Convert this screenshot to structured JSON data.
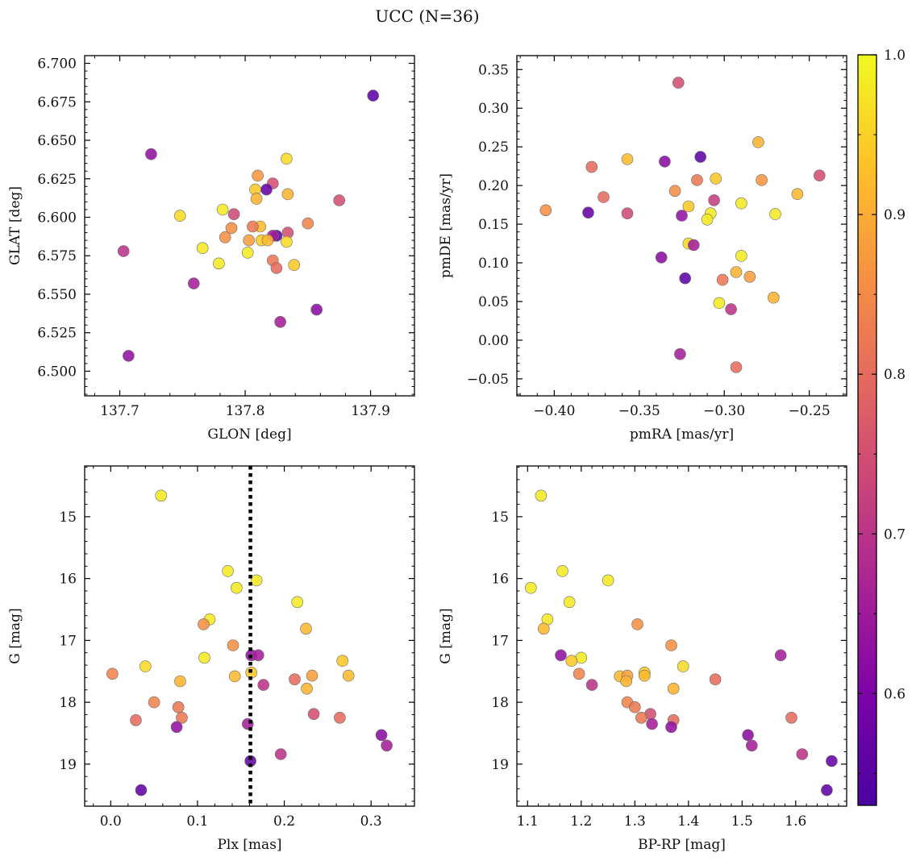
{
  "figure": {
    "title": "UCC (N=36)"
  },
  "colorbar": {
    "min": 0.53,
    "max": 1.0,
    "ticks": [
      0.6,
      0.7,
      0.8,
      0.9,
      1.0
    ],
    "tick_labels": [
      "0.6",
      "0.7",
      "0.8",
      "0.9",
      "1.0"
    ],
    "colormap": "plasma"
  },
  "chart_data": [
    {
      "type": "scatter",
      "xlabel": "GLON [deg]",
      "ylabel": "GLAT [deg]",
      "xlim": [
        137.672,
        137.935
      ],
      "ylim": [
        6.484,
        6.705
      ],
      "xticks": [
        137.7,
        137.8,
        137.9
      ],
      "xtick_labels": [
        "137.7",
        "137.8",
        "137.9"
      ],
      "yticks": [
        6.5,
        6.525,
        6.55,
        6.575,
        6.6,
        6.625,
        6.65,
        6.675,
        6.7
      ],
      "ytick_labels": [
        "6.500",
        "6.525",
        "6.550",
        "6.575",
        "6.600",
        "6.625",
        "6.650",
        "6.675",
        "6.700"
      ],
      "points": [
        {
          "x": 137.902,
          "y": 6.679,
          "c": 0.56
        },
        {
          "x": 137.725,
          "y": 6.641,
          "c": 0.63
        },
        {
          "x": 137.833,
          "y": 6.638,
          "c": 0.96
        },
        {
          "x": 137.81,
          "y": 6.627,
          "c": 0.87
        },
        {
          "x": 137.822,
          "y": 6.622,
          "c": 0.75
        },
        {
          "x": 137.817,
          "y": 6.618,
          "c": 0.57
        },
        {
          "x": 137.808,
          "y": 6.618,
          "c": 0.94
        },
        {
          "x": 137.834,
          "y": 6.615,
          "c": 0.91
        },
        {
          "x": 137.809,
          "y": 6.612,
          "c": 0.91
        },
        {
          "x": 137.875,
          "y": 6.611,
          "c": 0.75
        },
        {
          "x": 137.782,
          "y": 6.605,
          "c": 0.98
        },
        {
          "x": 137.791,
          "y": 6.602,
          "c": 0.74
        },
        {
          "x": 137.748,
          "y": 6.601,
          "c": 0.96
        },
        {
          "x": 137.85,
          "y": 6.596,
          "c": 0.84
        },
        {
          "x": 137.812,
          "y": 6.594,
          "c": 0.92
        },
        {
          "x": 137.806,
          "y": 6.594,
          "c": 0.82
        },
        {
          "x": 137.789,
          "y": 6.593,
          "c": 0.86
        },
        {
          "x": 137.834,
          "y": 6.59,
          "c": 0.75
        },
        {
          "x": 137.825,
          "y": 6.588,
          "c": 0.55
        },
        {
          "x": 137.822,
          "y": 6.588,
          "c": 0.66
        },
        {
          "x": 137.784,
          "y": 6.587,
          "c": 0.86
        },
        {
          "x": 137.813,
          "y": 6.585,
          "c": 0.94
        },
        {
          "x": 137.803,
          "y": 6.585,
          "c": 0.88
        },
        {
          "x": 137.833,
          "y": 6.584,
          "c": 0.96
        },
        {
          "x": 137.818,
          "y": 6.585,
          "c": 0.92
        },
        {
          "x": 137.766,
          "y": 6.58,
          "c": 0.98
        },
        {
          "x": 137.703,
          "y": 6.578,
          "c": 0.7
        },
        {
          "x": 137.802,
          "y": 6.577,
          "c": 0.98
        },
        {
          "x": 137.822,
          "y": 6.572,
          "c": 0.82
        },
        {
          "x": 137.779,
          "y": 6.57,
          "c": 0.98
        },
        {
          "x": 137.839,
          "y": 6.569,
          "c": 0.94
        },
        {
          "x": 137.825,
          "y": 6.567,
          "c": 0.8
        },
        {
          "x": 137.759,
          "y": 6.557,
          "c": 0.66
        },
        {
          "x": 137.857,
          "y": 6.54,
          "c": 0.62
        },
        {
          "x": 137.828,
          "y": 6.532,
          "c": 0.66
        },
        {
          "x": 137.707,
          "y": 6.51,
          "c": 0.63
        }
      ]
    },
    {
      "type": "scatter",
      "xlabel": "pmRA [mas/yr]",
      "ylabel": "pmDE [mas/yr]",
      "xlim": [
        -0.422,
        -0.228
      ],
      "ylim": [
        -0.072,
        0.368
      ],
      "xticks": [
        -0.4,
        -0.35,
        -0.3,
        -0.25
      ],
      "xtick_labels": [
        "−0.40",
        "−0.35",
        "−0.30",
        "−0.25"
      ],
      "yticks": [
        -0.05,
        0.0,
        0.05,
        0.1,
        0.15,
        0.2,
        0.25,
        0.3,
        0.35
      ],
      "ytick_labels": [
        "−0.05",
        "0.00",
        "0.05",
        "0.10",
        "0.15",
        "0.20",
        "0.25",
        "0.30",
        "0.35"
      ],
      "points": [
        {
          "x": -0.327,
          "y": 0.333,
          "c": 0.75
        },
        {
          "x": -0.28,
          "y": 0.256,
          "c": 0.91
        },
        {
          "x": -0.314,
          "y": 0.237,
          "c": 0.56
        },
        {
          "x": -0.357,
          "y": 0.234,
          "c": 0.92
        },
        {
          "x": -0.335,
          "y": 0.231,
          "c": 0.62
        },
        {
          "x": -0.378,
          "y": 0.224,
          "c": 0.8
        },
        {
          "x": -0.244,
          "y": 0.213,
          "c": 0.75
        },
        {
          "x": -0.305,
          "y": 0.209,
          "c": 0.94
        },
        {
          "x": -0.316,
          "y": 0.207,
          "c": 0.82
        },
        {
          "x": -0.278,
          "y": 0.207,
          "c": 0.87
        },
        {
          "x": -0.329,
          "y": 0.193,
          "c": 0.86
        },
        {
          "x": -0.257,
          "y": 0.189,
          "c": 0.92
        },
        {
          "x": -0.371,
          "y": 0.185,
          "c": 0.8
        },
        {
          "x": -0.306,
          "y": 0.181,
          "c": 0.72
        },
        {
          "x": -0.29,
          "y": 0.177,
          "c": 0.98
        },
        {
          "x": -0.321,
          "y": 0.173,
          "c": 0.94
        },
        {
          "x": -0.405,
          "y": 0.168,
          "c": 0.86
        },
        {
          "x": -0.38,
          "y": 0.165,
          "c": 0.57
        },
        {
          "x": -0.357,
          "y": 0.164,
          "c": 0.74
        },
        {
          "x": -0.308,
          "y": 0.164,
          "c": 0.98
        },
        {
          "x": -0.27,
          "y": 0.163,
          "c": 0.98
        },
        {
          "x": -0.325,
          "y": 0.161,
          "c": 0.63
        },
        {
          "x": -0.31,
          "y": 0.156,
          "c": 0.98
        },
        {
          "x": -0.321,
          "y": 0.125,
          "c": 0.96
        },
        {
          "x": -0.318,
          "y": 0.123,
          "c": 0.66
        },
        {
          "x": -0.337,
          "y": 0.107,
          "c": 0.62
        },
        {
          "x": -0.29,
          "y": 0.109,
          "c": 0.98
        },
        {
          "x": -0.293,
          "y": 0.088,
          "c": 0.91
        },
        {
          "x": -0.285,
          "y": 0.082,
          "c": 0.88
        },
        {
          "x": -0.323,
          "y": 0.08,
          "c": 0.56
        },
        {
          "x": -0.301,
          "y": 0.078,
          "c": 0.82
        },
        {
          "x": -0.271,
          "y": 0.055,
          "c": 0.91
        },
        {
          "x": -0.303,
          "y": 0.048,
          "c": 0.98
        },
        {
          "x": -0.296,
          "y": 0.04,
          "c": 0.7
        },
        {
          "x": -0.326,
          "y": -0.018,
          "c": 0.66
        },
        {
          "x": -0.293,
          "y": -0.035,
          "c": 0.8
        }
      ]
    },
    {
      "type": "scatter",
      "xlabel": "Plx [mas]",
      "ylabel": "G [mag]",
      "xlim": [
        -0.03,
        0.35
      ],
      "ylim": [
        19.68,
        14.18
      ],
      "inverted_y": true,
      "vline": {
        "x": 0.161,
        "style": "dotted"
      },
      "xticks": [
        0.0,
        0.1,
        0.2,
        0.3
      ],
      "xtick_labels": [
        "0.0",
        "0.1",
        "0.2",
        "0.3"
      ],
      "yticks": [
        15,
        16,
        17,
        18,
        19
      ],
      "ytick_labels": [
        "15",
        "16",
        "17",
        "18",
        "19"
      ],
      "points": [
        {
          "x": 0.058,
          "y": 14.66,
          "c": 0.98
        },
        {
          "x": 0.135,
          "y": 15.88,
          "c": 0.98
        },
        {
          "x": 0.168,
          "y": 16.03,
          "c": 0.98
        },
        {
          "x": 0.145,
          "y": 16.15,
          "c": 0.98
        },
        {
          "x": 0.215,
          "y": 16.38,
          "c": 0.98
        },
        {
          "x": 0.114,
          "y": 16.66,
          "c": 0.98
        },
        {
          "x": 0.107,
          "y": 16.74,
          "c": 0.86
        },
        {
          "x": 0.225,
          "y": 16.81,
          "c": 0.92
        },
        {
          "x": 0.141,
          "y": 17.08,
          "c": 0.86
        },
        {
          "x": 0.162,
          "y": 17.24,
          "c": 0.63
        },
        {
          "x": 0.17,
          "y": 17.24,
          "c": 0.66
        },
        {
          "x": 0.108,
          "y": 17.28,
          "c": 0.98
        },
        {
          "x": 0.267,
          "y": 17.33,
          "c": 0.94
        },
        {
          "x": 0.04,
          "y": 17.42,
          "c": 0.96
        },
        {
          "x": 0.162,
          "y": 17.52,
          "c": 0.94
        },
        {
          "x": 0.002,
          "y": 17.54,
          "c": 0.84
        },
        {
          "x": 0.143,
          "y": 17.58,
          "c": 0.92
        },
        {
          "x": 0.232,
          "y": 17.57,
          "c": 0.88
        },
        {
          "x": 0.274,
          "y": 17.57,
          "c": 0.92
        },
        {
          "x": 0.212,
          "y": 17.63,
          "c": 0.8
        },
        {
          "x": 0.08,
          "y": 17.66,
          "c": 0.91
        },
        {
          "x": 0.176,
          "y": 17.72,
          "c": 0.7
        },
        {
          "x": 0.226,
          "y": 17.78,
          "c": 0.91
        },
        {
          "x": 0.05,
          "y": 18.0,
          "c": 0.84
        },
        {
          "x": 0.078,
          "y": 18.08,
          "c": 0.82
        },
        {
          "x": 0.234,
          "y": 18.19,
          "c": 0.75
        },
        {
          "x": 0.082,
          "y": 18.25,
          "c": 0.82
        },
        {
          "x": 0.264,
          "y": 18.25,
          "c": 0.8
        },
        {
          "x": 0.029,
          "y": 18.29,
          "c": 0.8
        },
        {
          "x": 0.158,
          "y": 18.35,
          "c": 0.66
        },
        {
          "x": 0.076,
          "y": 18.4,
          "c": 0.63
        },
        {
          "x": 0.312,
          "y": 18.53,
          "c": 0.62
        },
        {
          "x": 0.318,
          "y": 18.7,
          "c": 0.66
        },
        {
          "x": 0.196,
          "y": 18.84,
          "c": 0.7
        },
        {
          "x": 0.161,
          "y": 18.95,
          "c": 0.57
        },
        {
          "x": 0.035,
          "y": 19.42,
          "c": 0.56
        }
      ]
    },
    {
      "type": "scatter",
      "xlabel": "BP-RP [mag]",
      "ylabel": "G [mag]",
      "xlim": [
        1.08,
        1.695
      ],
      "ylim": [
        19.68,
        14.18
      ],
      "inverted_y": true,
      "xticks": [
        1.1,
        1.2,
        1.3,
        1.4,
        1.5,
        1.6
      ],
      "xtick_labels": [
        "1.1",
        "1.2",
        "1.3",
        "1.4",
        "1.5",
        "1.6"
      ],
      "yticks": [
        15,
        16,
        17,
        18,
        19
      ],
      "ytick_labels": [
        "15",
        "16",
        "17",
        "18",
        "19"
      ],
      "points": [
        {
          "x": 1.125,
          "y": 14.66,
          "c": 0.98
        },
        {
          "x": 1.165,
          "y": 15.88,
          "c": 0.98
        },
        {
          "x": 1.25,
          "y": 16.03,
          "c": 0.98
        },
        {
          "x": 1.106,
          "y": 16.15,
          "c": 0.98
        },
        {
          "x": 1.178,
          "y": 16.38,
          "c": 0.98
        },
        {
          "x": 1.137,
          "y": 16.66,
          "c": 0.98
        },
        {
          "x": 1.305,
          "y": 16.74,
          "c": 0.86
        },
        {
          "x": 1.13,
          "y": 16.81,
          "c": 0.92
        },
        {
          "x": 1.368,
          "y": 17.08,
          "c": 0.86
        },
        {
          "x": 1.162,
          "y": 17.24,
          "c": 0.63
        },
        {
          "x": 1.572,
          "y": 17.24,
          "c": 0.66
        },
        {
          "x": 1.2,
          "y": 17.28,
          "c": 0.98
        },
        {
          "x": 1.182,
          "y": 17.33,
          "c": 0.94
        },
        {
          "x": 1.39,
          "y": 17.42,
          "c": 0.96
        },
        {
          "x": 1.318,
          "y": 17.52,
          "c": 0.94
        },
        {
          "x": 1.196,
          "y": 17.54,
          "c": 0.84
        },
        {
          "x": 1.272,
          "y": 17.58,
          "c": 0.92
        },
        {
          "x": 1.286,
          "y": 17.57,
          "c": 0.88
        },
        {
          "x": 1.318,
          "y": 17.57,
          "c": 0.92
        },
        {
          "x": 1.45,
          "y": 17.63,
          "c": 0.8
        },
        {
          "x": 1.284,
          "y": 17.66,
          "c": 0.91
        },
        {
          "x": 1.22,
          "y": 17.72,
          "c": 0.7
        },
        {
          "x": 1.372,
          "y": 17.78,
          "c": 0.91
        },
        {
          "x": 1.286,
          "y": 18.0,
          "c": 0.84
        },
        {
          "x": 1.3,
          "y": 18.08,
          "c": 0.82
        },
        {
          "x": 1.329,
          "y": 18.19,
          "c": 0.75
        },
        {
          "x": 1.312,
          "y": 18.25,
          "c": 0.82
        },
        {
          "x": 1.592,
          "y": 18.25,
          "c": 0.8
        },
        {
          "x": 1.372,
          "y": 18.29,
          "c": 0.8
        },
        {
          "x": 1.332,
          "y": 18.35,
          "c": 0.66
        },
        {
          "x": 1.368,
          "y": 18.4,
          "c": 0.63
        },
        {
          "x": 1.511,
          "y": 18.53,
          "c": 0.62
        },
        {
          "x": 1.518,
          "y": 18.7,
          "c": 0.66
        },
        {
          "x": 1.612,
          "y": 18.84,
          "c": 0.7
        },
        {
          "x": 1.667,
          "y": 18.95,
          "c": 0.57
        },
        {
          "x": 1.658,
          "y": 19.42,
          "c": 0.56
        }
      ]
    }
  ]
}
